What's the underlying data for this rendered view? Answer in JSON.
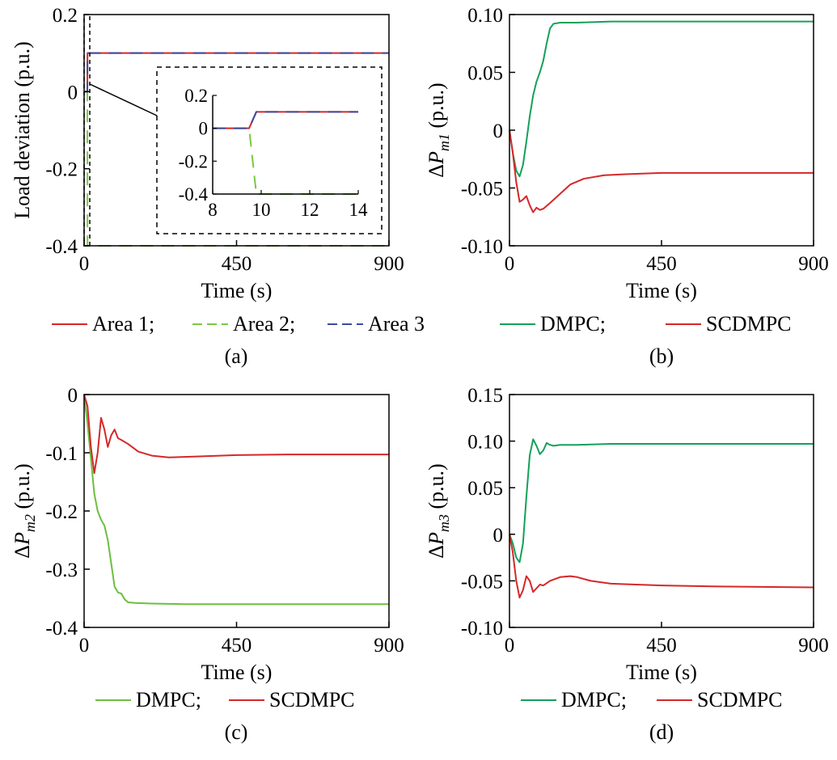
{
  "chart_data": [
    {
      "panel": "(a)",
      "type": "line",
      "xlabel": "Time (s)",
      "ylabel": "Load deviation (p.u.)",
      "xlim": [
        0,
        900
      ],
      "ylim": [
        -0.4,
        0.2
      ],
      "xticks": [
        "0",
        "450",
        "900"
      ],
      "yticks": [
        "-0.4",
        "-0.2",
        "0",
        "0.2"
      ],
      "legend_position": "bottom",
      "series": [
        {
          "name": "Area 1;",
          "color": "#d62728",
          "dash": "solid",
          "x": [
            0,
            9.6,
            10,
            900
          ],
          "y": [
            0,
            0,
            0.1,
            0.1
          ]
        },
        {
          "name": "Area 2;",
          "color": "#7ac943",
          "dash": "dashed",
          "x": [
            0,
            9.6,
            10,
            900
          ],
          "y": [
            0,
            0,
            -0.4,
            -0.4
          ]
        },
        {
          "name": "Area 3",
          "color": "#3c4aa0",
          "dash": "dashed",
          "x": [
            0,
            9.6,
            10,
            900
          ],
          "y": [
            0,
            0,
            0.1,
            0.1
          ]
        }
      ],
      "inset": {
        "xlim": [
          8,
          14
        ],
        "ylim": [
          -0.4,
          0.2
        ],
        "xticks": [
          "8",
          "10",
          "12",
          "14"
        ],
        "yticks": [
          "-0.4",
          "-0.2",
          "0",
          "0.2"
        ],
        "series": [
          {
            "name": "Area 1;",
            "color": "#d62728",
            "dash": "solid",
            "x": [
              8,
              9.5,
              9.8,
              14
            ],
            "y": [
              0,
              0,
              0.1,
              0.1
            ]
          },
          {
            "name": "Area 2;",
            "color": "#7ac943",
            "dash": "dashed",
            "x": [
              8,
              9.5,
              9.8,
              14
            ],
            "y": [
              0,
              0,
              -0.4,
              -0.4
            ]
          },
          {
            "name": "Area 3",
            "color": "#3c4aa0",
            "dash": "dashed",
            "x": [
              8,
              9.5,
              9.8,
              14
            ],
            "y": [
              0,
              0,
              0.1,
              0.1
            ]
          }
        ]
      }
    },
    {
      "panel": "(b)",
      "type": "line",
      "xlabel": "Time (s)",
      "ylabel_prefix": "ΔP",
      "ylabel_sub": "m1",
      "ylabel_suffix": " (p.u.)",
      "xlim": [
        0,
        900
      ],
      "ylim": [
        -0.1,
        0.1
      ],
      "xticks": [
        "0",
        "450",
        "900"
      ],
      "yticks": [
        "-0.10",
        "-0.05",
        "0",
        "0.05",
        "0.10"
      ],
      "legend_position": "bottom",
      "series": [
        {
          "name": "DMPC;",
          "color": "#14a05a",
          "dash": "solid",
          "x": [
            0,
            10,
            20,
            30,
            40,
            50,
            60,
            70,
            80,
            90,
            100,
            110,
            120,
            130,
            150,
            200,
            300,
            450,
            600,
            900
          ],
          "y": [
            0,
            -0.02,
            -0.035,
            -0.04,
            -0.03,
            -0.01,
            0.012,
            0.03,
            0.042,
            0.05,
            0.06,
            0.075,
            0.088,
            0.092,
            0.093,
            0.093,
            0.094,
            0.094,
            0.094,
            0.094
          ]
        },
        {
          "name": "SCDMPC",
          "color": "#d62728",
          "dash": "solid",
          "x": [
            0,
            10,
            20,
            30,
            40,
            50,
            60,
            70,
            80,
            90,
            100,
            120,
            150,
            180,
            220,
            280,
            350,
            450,
            600,
            900
          ],
          "y": [
            0,
            -0.02,
            -0.045,
            -0.062,
            -0.06,
            -0.057,
            -0.065,
            -0.071,
            -0.067,
            -0.069,
            -0.068,
            -0.063,
            -0.055,
            -0.047,
            -0.042,
            -0.039,
            -0.038,
            -0.037,
            -0.037,
            -0.037
          ]
        }
      ]
    },
    {
      "panel": "(c)",
      "type": "line",
      "xlabel": "Time (s)",
      "ylabel_prefix": "ΔP",
      "ylabel_sub": "m2",
      "ylabel_suffix": " (p.u.)",
      "xlim": [
        0,
        900
      ],
      "ylim": [
        -0.4,
        0
      ],
      "xticks": [
        "0",
        "450",
        "900"
      ],
      "yticks": [
        "-0.4",
        "-0.3",
        "-0.2",
        "-0.1",
        "0"
      ],
      "legend_position": "bottom",
      "series": [
        {
          "name": "DMPC;",
          "color": "#6cbf3f",
          "dash": "solid",
          "x": [
            0,
            10,
            20,
            30,
            40,
            50,
            60,
            70,
            80,
            90,
            100,
            110,
            120,
            130,
            150,
            200,
            300,
            450,
            900
          ],
          "y": [
            0,
            -0.05,
            -0.11,
            -0.17,
            -0.2,
            -0.215,
            -0.225,
            -0.25,
            -0.29,
            -0.33,
            -0.34,
            -0.342,
            -0.352,
            -0.357,
            -0.358,
            -0.359,
            -0.36,
            -0.36,
            -0.36
          ]
        },
        {
          "name": "SCDMPC",
          "color": "#d62728",
          "dash": "solid",
          "x": [
            0,
            10,
            20,
            30,
            40,
            50,
            60,
            70,
            80,
            90,
            100,
            110,
            130,
            160,
            200,
            250,
            350,
            450,
            600,
            900
          ],
          "y": [
            0,
            -0.02,
            -0.09,
            -0.135,
            -0.1,
            -0.04,
            -0.06,
            -0.09,
            -0.07,
            -0.06,
            -0.075,
            -0.078,
            -0.085,
            -0.098,
            -0.105,
            -0.108,
            -0.106,
            -0.104,
            -0.103,
            -0.103
          ]
        }
      ]
    },
    {
      "panel": "(d)",
      "type": "line",
      "xlabel": "Time (s)",
      "ylabel_prefix": "ΔP",
      "ylabel_sub": "m3",
      "ylabel_suffix": " (p.u.)",
      "xlim": [
        0,
        900
      ],
      "ylim": [
        -0.1,
        0.15
      ],
      "xticks": [
        "0",
        "450",
        "900"
      ],
      "yticks": [
        "-0.10",
        "-0.05",
        "0",
        "0.05",
        "0.10",
        "0.15"
      ],
      "legend_position": "bottom",
      "series": [
        {
          "name": "DMPC;",
          "color": "#14a05a",
          "dash": "solid",
          "x": [
            0,
            10,
            20,
            30,
            40,
            50,
            60,
            70,
            80,
            90,
            100,
            110,
            120,
            130,
            150,
            200,
            300,
            450,
            900
          ],
          "y": [
            0,
            -0.01,
            -0.025,
            -0.03,
            -0.01,
            0.04,
            0.085,
            0.102,
            0.095,
            0.086,
            0.09,
            0.098,
            0.096,
            0.095,
            0.096,
            0.096,
            0.097,
            0.097,
            0.097
          ]
        },
        {
          "name": "SCDMPC",
          "color": "#d62728",
          "dash": "solid",
          "x": [
            0,
            10,
            20,
            30,
            40,
            50,
            60,
            70,
            80,
            90,
            100,
            120,
            150,
            180,
            200,
            240,
            300,
            450,
            600,
            900
          ],
          "y": [
            0,
            -0.02,
            -0.05,
            -0.068,
            -0.06,
            -0.045,
            -0.05,
            -0.062,
            -0.058,
            -0.054,
            -0.055,
            -0.05,
            -0.046,
            -0.045,
            -0.046,
            -0.05,
            -0.053,
            -0.055,
            -0.056,
            -0.057
          ]
        }
      ]
    }
  ],
  "captions": [
    "(a)",
    "(b)",
    "(c)",
    "(d)"
  ]
}
